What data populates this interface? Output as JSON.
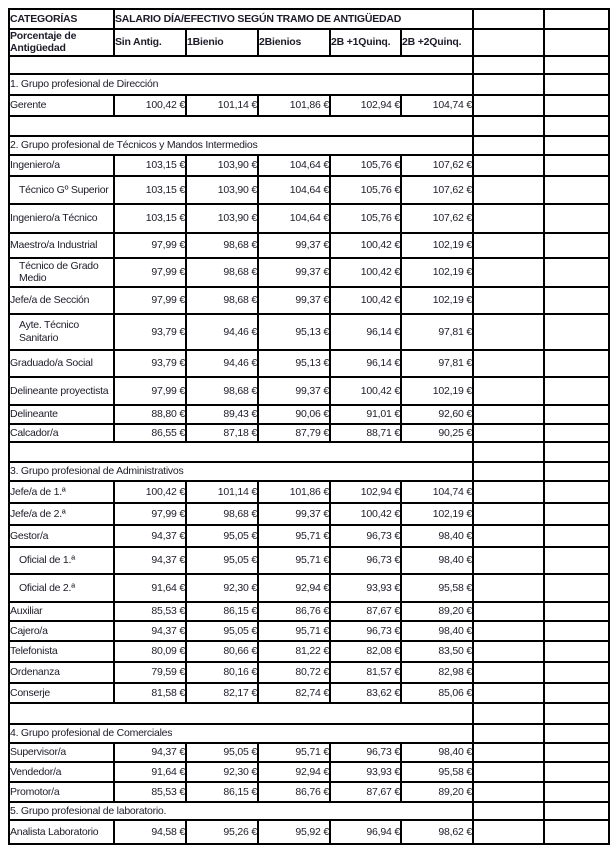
{
  "colors": {
    "border": "#000000",
    "text": "#1c1c28",
    "background": "#ffffff"
  },
  "table": {
    "categories_header": "CATEGORÍAS",
    "salario_header": "SALARIO DÍA/EFECTIVO SEGÚN TRAMO DE ANTIGÜEDAD",
    "antiguedad_label": "Porcentaje de\nAntigüedad",
    "tranche_columns": [
      "Sin Antig.",
      "1Bienio",
      "2Bienios",
      "2B +1Quinq.",
      "2B +2Quinq."
    ],
    "currency_symbol": "€",
    "rows": [
      {
        "type": "spacer"
      },
      {
        "type": "group",
        "label": "1. Grupo profesional de Dirección"
      },
      {
        "type": "data",
        "label": "Gerente",
        "values": [
          "100,42",
          "101,14",
          "101,86",
          "102,94",
          "104,74"
        ]
      },
      {
        "type": "spacer"
      },
      {
        "type": "group",
        "label": "2. Grupo profesional de Técnicos y Mandos Intermedios"
      },
      {
        "type": "data",
        "label": "Ingeniero/a",
        "values": [
          "103,15",
          "103,90",
          "104,64",
          "105,76",
          "107,62"
        ]
      },
      {
        "type": "data",
        "label": "Técnico Gº Superior",
        "indent": true,
        "values": [
          "103,15",
          "103,90",
          "104,64",
          "105,76",
          "107,62"
        ]
      },
      {
        "type": "data",
        "label": "Ingeniero/a Técnico",
        "values": [
          "103,15",
          "103,90",
          "104,64",
          "105,76",
          "107,62"
        ]
      },
      {
        "type": "data",
        "label": "Maestro/a Industrial",
        "values": [
          "97,99",
          "98,68",
          "99,37",
          "100,42",
          "102,19"
        ]
      },
      {
        "type": "data",
        "label": "Técnico de Grado\nMedio",
        "indent": true,
        "values": [
          "97,99",
          "98,68",
          "99,37",
          "100,42",
          "102,19"
        ]
      },
      {
        "type": "data",
        "label": "Jefe/a de Sección",
        "values": [
          "97,99",
          "98,68",
          "99,37",
          "100,42",
          "102,19"
        ]
      },
      {
        "type": "data",
        "label": "Ayte. Técnico\nSanitario",
        "indent": true,
        "values": [
          "93,79",
          "94,46",
          "95,13",
          "96,14",
          "97,81"
        ]
      },
      {
        "type": "data",
        "label": "Graduado/a Social",
        "values": [
          "93,79",
          "94,46",
          "95,13",
          "96,14",
          "97,81"
        ]
      },
      {
        "type": "data",
        "label": "Delineante proyectista",
        "values": [
          "97,99",
          "98,68",
          "99,37",
          "100,42",
          "102,19"
        ]
      },
      {
        "type": "data",
        "label": "Delineante",
        "values": [
          "88,80",
          "89,43",
          "90,06",
          "91,01",
          "92,60"
        ]
      },
      {
        "type": "data",
        "label": "Calcador/a",
        "values": [
          "86,55",
          "87,18",
          "87,79",
          "88,71",
          "90,25"
        ]
      },
      {
        "type": "spacer"
      },
      {
        "type": "group",
        "label": "3. Grupo profesional de Administrativos"
      },
      {
        "type": "data",
        "label": "Jefe/a de 1.ª",
        "values": [
          "100,42",
          "101,14",
          "101,86",
          "102,94",
          "104,74"
        ]
      },
      {
        "type": "data",
        "label": "Jefe/a de 2.ª",
        "values": [
          "97,99",
          "98,68",
          "99,37",
          "100,42",
          "102,19"
        ]
      },
      {
        "type": "data",
        "label": "Gestor/a",
        "values": [
          "94,37",
          "95,05",
          "95,71",
          "96,73",
          "98,40"
        ]
      },
      {
        "type": "data",
        "label": "Oficial de 1.ª",
        "indent": true,
        "values": [
          "94,37",
          "95,05",
          "95,71",
          "96,73",
          "98,40"
        ]
      },
      {
        "type": "data",
        "label": "Oficial de 2.ª",
        "indent": true,
        "values": [
          "91,64",
          "92,30",
          "92,94",
          "93,93",
          "95,58"
        ]
      },
      {
        "type": "data",
        "label": "Auxiliar",
        "values": [
          "85,53",
          "86,15",
          "86,76",
          "87,67",
          "89,20"
        ]
      },
      {
        "type": "data",
        "label": "Cajero/a",
        "values": [
          "94,37",
          "95,05",
          "95,71",
          "96,73",
          "98,40"
        ]
      },
      {
        "type": "data",
        "label": "Telefonista",
        "values": [
          "80,09",
          "80,66",
          "81,22",
          "82,08",
          "83,50"
        ]
      },
      {
        "type": "data",
        "label": "Ordenanza",
        "values": [
          "79,59",
          "80,16",
          "80,72",
          "81,57",
          "82,98"
        ]
      },
      {
        "type": "data",
        "label": "Conserje",
        "values": [
          "81,58",
          "82,17",
          "82,74",
          "83,62",
          "85,06"
        ]
      },
      {
        "type": "spacer"
      },
      {
        "type": "group",
        "label": "4. Grupo profesional de Comerciales"
      },
      {
        "type": "data",
        "label": "Supervisor/a",
        "values": [
          "94,37",
          "95,05",
          "95,71",
          "96,73",
          "98,40"
        ]
      },
      {
        "type": "data",
        "label": "Vendedor/a",
        "values": [
          "91,64",
          "92,30",
          "92,94",
          "93,93",
          "95,58"
        ]
      },
      {
        "type": "data",
        "label": "Promotor/a",
        "values": [
          "85,53",
          "86,15",
          "86,76",
          "87,67",
          "89,20"
        ]
      },
      {
        "type": "group",
        "label": "5. Grupo profesional de laboratorio."
      },
      {
        "type": "data",
        "label": "Analista Laboratorio",
        "values": [
          "94,58",
          "95,26",
          "95,92",
          "96,94",
          "98,62"
        ]
      }
    ]
  }
}
